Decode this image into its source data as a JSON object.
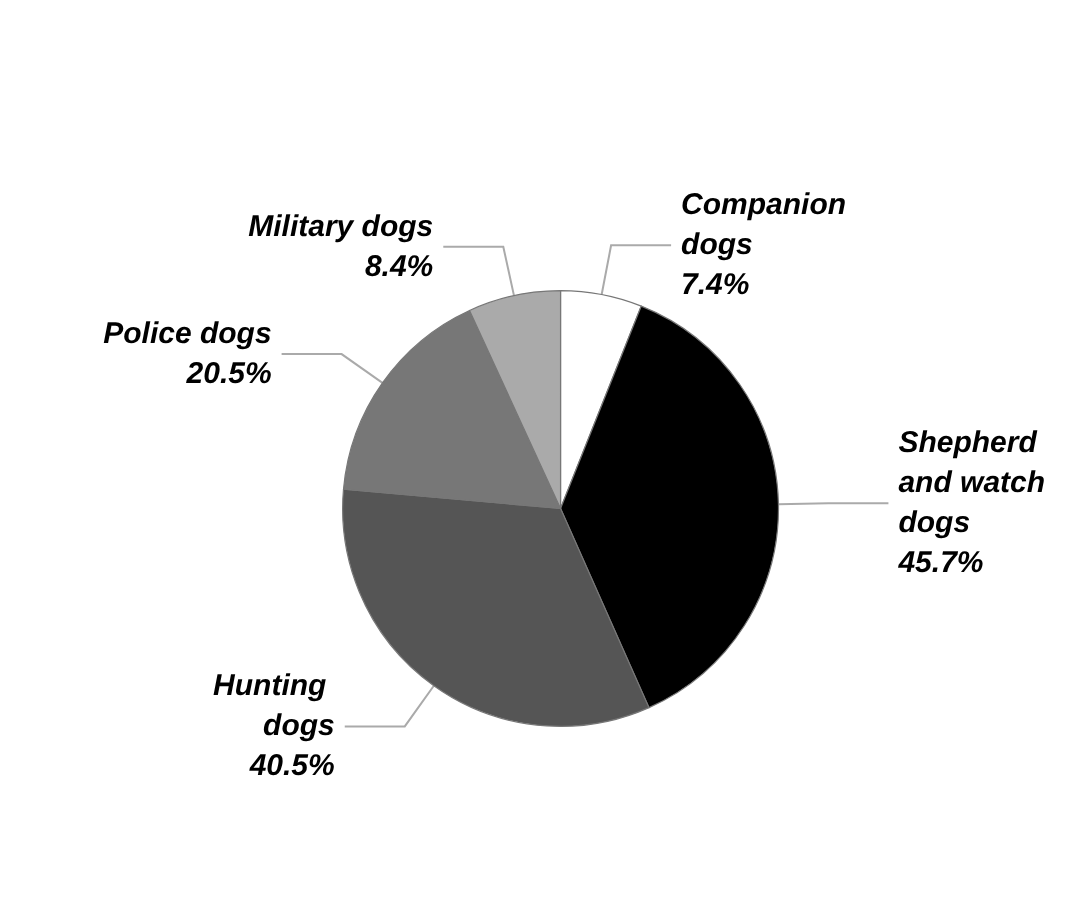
{
  "chart_data": {
    "type": "pie",
    "categories": [
      "Companion dogs",
      "Shepherd and watch dogs",
      "Hunting dogs",
      "Police dogs",
      "Military dogs"
    ],
    "values": [
      7.4,
      45.7,
      40.5,
      20.5,
      8.4
    ],
    "colors": [
      "#ffffff",
      "#000000",
      "#555555",
      "#777777",
      "#aaaaaa"
    ],
    "value_labels": [
      "7.4%",
      "45.7%",
      "40.5%",
      "20.5%",
      "8.4%"
    ],
    "legend": false
  }
}
